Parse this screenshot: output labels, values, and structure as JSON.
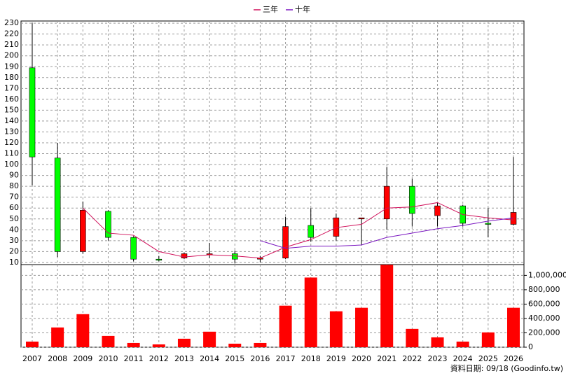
{
  "chart_data": {
    "type": "candlestick",
    "categories": [
      "2007",
      "2008",
      "2009",
      "2010",
      "2011",
      "2012",
      "2013",
      "2014",
      "2015",
      "2016",
      "2017",
      "2018",
      "2019",
      "2020",
      "2021",
      "2022",
      "2023",
      "2024",
      "2025",
      "2026"
    ],
    "open": [
      189,
      106,
      20,
      57,
      33,
      13,
      14,
      17,
      18,
      13,
      14,
      44,
      34,
      50,
      50,
      80,
      53,
      62,
      46,
      45
    ],
    "high": [
      230,
      120,
      66,
      58,
      34,
      16,
      19,
      28,
      21,
      16,
      52,
      60,
      55,
      51,
      98,
      87,
      65,
      63,
      60,
      107
    ],
    "low": [
      81,
      15,
      18,
      30,
      11,
      11,
      13,
      14,
      9,
      10,
      13,
      29,
      30,
      26,
      40,
      43,
      43,
      43,
      33,
      44
    ],
    "close": [
      107,
      20,
      58,
      33,
      13,
      12,
      18,
      18,
      13,
      14,
      43,
      33,
      51,
      51,
      80,
      55,
      62,
      46,
      45,
      56
    ],
    "up_color": "#ff0000",
    "down_color": "#00ff00",
    "ylim": [
      8,
      232
    ],
    "yticks": [
      10,
      20,
      30,
      40,
      50,
      60,
      70,
      80,
      90,
      100,
      110,
      120,
      130,
      140,
      150,
      160,
      170,
      180,
      190,
      200,
      210,
      220,
      230
    ],
    "grid": true,
    "series": [
      {
        "name": "三年",
        "color": "#d0105a",
        "values": [
          null,
          null,
          60,
          37,
          35,
          20,
          15,
          17,
          16,
          14,
          24,
          31,
          42,
          45,
          60,
          61,
          65,
          54,
          51,
          49
        ]
      },
      {
        "name": "十年",
        "color": "#7a16c0",
        "values": [
          null,
          null,
          null,
          null,
          null,
          null,
          null,
          null,
          null,
          30,
          23,
          25,
          25,
          26,
          33,
          37,
          41,
          44,
          48,
          51
        ]
      }
    ],
    "volume": {
      "type": "bar",
      "color": "#ff0000",
      "values": [
        78000,
        275000,
        460000,
        157000,
        59000,
        39000,
        118000,
        216000,
        49000,
        59000,
        578000,
        970000,
        500000,
        549000,
        1147000,
        255000,
        137000,
        78000,
        206000,
        549000
      ],
      "ylim": [
        0,
        1150000
      ],
      "yticks": [
        0,
        {
          "value": 200000,
          "label": "200,000"
        },
        {
          "value": 400000,
          "label": "400,000"
        },
        {
          "value": 600000,
          "label": "600,000"
        },
        {
          "value": 800000,
          "label": "800,000"
        },
        {
          "value": 1000000,
          "label": "1,000,000"
        }
      ]
    },
    "footnote": "資料日期: 09/18 (Goodinfo.tw)"
  }
}
